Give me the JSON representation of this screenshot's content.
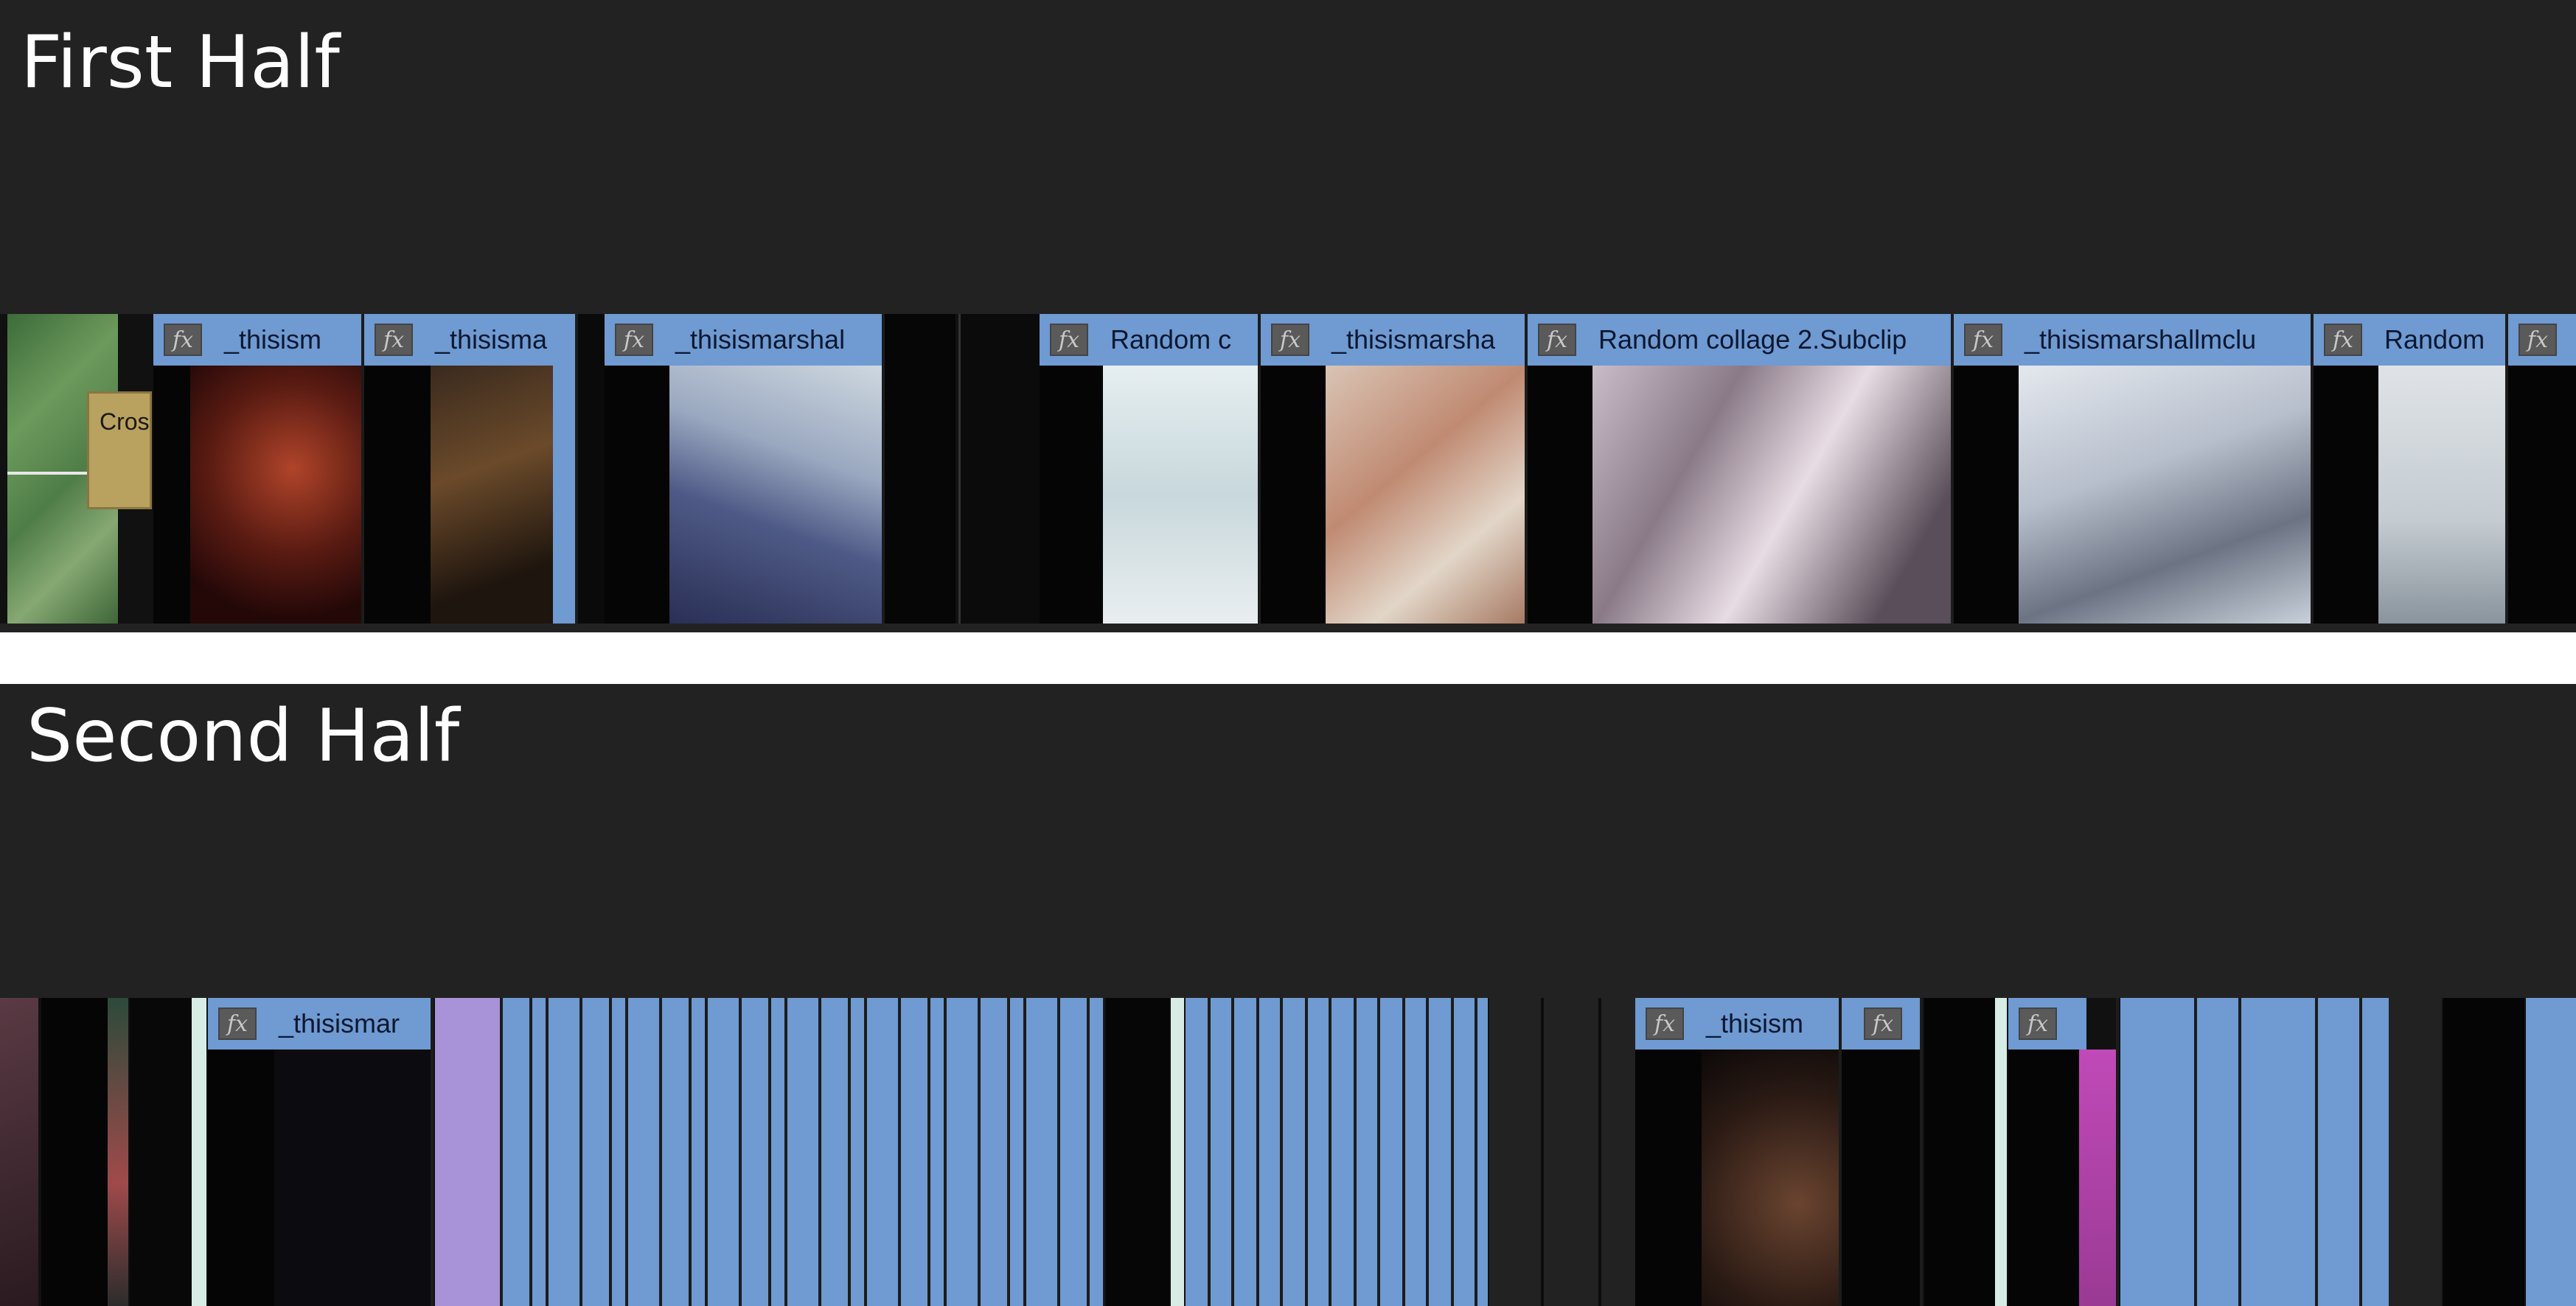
{
  "panels": {
    "first": {
      "title": "First Half",
      "transition_label": "Cros",
      "clips": [
        {
          "label": "_thisism"
        },
        {
          "label": "_thisisma"
        },
        {
          "label": "_thisismarshal"
        },
        {
          "label": "Random c"
        },
        {
          "label": "_thisismarsha"
        },
        {
          "label": "Random collage 2.Subclip"
        },
        {
          "label": "_thisismarshallmclu"
        },
        {
          "label": "Random"
        },
        {
          "label": ""
        }
      ]
    },
    "second": {
      "title": "Second Half",
      "clips": [
        {
          "label": "_thisismar"
        },
        {
          "label": "_thisism"
        },
        {
          "label": ""
        },
        {
          "label": ""
        }
      ]
    }
  },
  "colors": {
    "clip_blue": "#6f9ad2",
    "panel_bg": "#222222",
    "transition_gold": "#b9a160",
    "adjustment_purple": "#a892d8"
  },
  "icons": {
    "fx": "fx-badge-icon"
  }
}
